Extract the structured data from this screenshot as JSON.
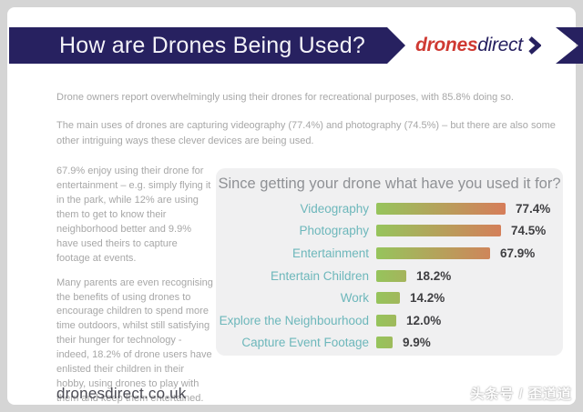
{
  "appearance": {
    "colors": {
      "page-bg": "#d5d5d5",
      "card-bg": "#ffffff",
      "navy": "#272160",
      "logo-red": "#cf3a33",
      "body-gray": "#a7a7a7",
      "panel-bg": "#f0f0f1",
      "title-gray": "#8f9195",
      "teal": "#6db7bb",
      "value-dark": "#3f3f42",
      "bar-green": "#96c45c",
      "bar-red": "#e9685a",
      "footer-dark": "#4b4b54"
    }
  },
  "header": {
    "title": "How are Drones Being Used?",
    "logo_part1": "drones",
    "logo_part2": "direct"
  },
  "intro": {
    "p1": "Drone owners report overwhelmingly using their drones for recreational purposes, with 85.8% doing so.",
    "p2": "The main uses of drones are capturing videography (77.4%) and photography (74.5%) – but there are also some other intriguing ways these clever devices are being used."
  },
  "sidebar": {
    "p1": "67.9% enjoy using their drone for entertainment – e.g. simply flying it in the park, while 12% are using them to get to know their neighborhood better and 9.9% have used theirs to capture footage at events.",
    "p2": "Many parents are even recognising the benefits of using drones to encourage children to spend more time outdoors, whilst still satisfying their hunger for technology - indeed, 18.2% of drone users have enlisted their children in their hobby, using drones to play with them and keep them entertained."
  },
  "chart_data": {
    "type": "bar",
    "orientation": "horizontal",
    "title": "Since getting your drone what have you used it for?",
    "categories": [
      "Videography",
      "Photography",
      "Entertainment",
      "Entertain Children",
      "Work",
      "Explore the Neighbourhood",
      "Capture Event Footage"
    ],
    "values": [
      77.4,
      74.5,
      67.9,
      18.2,
      14.2,
      12.0,
      9.9
    ],
    "value_labels": [
      "77.4%",
      "74.5%",
      "67.9%",
      "18.2%",
      "14.2%",
      "12.0%",
      "9.9%"
    ],
    "xlim": [
      0,
      100
    ],
    "grid": "off",
    "legend": "none",
    "bar_gradient": [
      "#96c45c",
      "#e9685a"
    ],
    "label_color": "#6db7bb",
    "value_color": "#3f3f42"
  },
  "footer": {
    "site": "dronesdirect.co.uk",
    "watermark": "头条号 / 歪道道"
  }
}
